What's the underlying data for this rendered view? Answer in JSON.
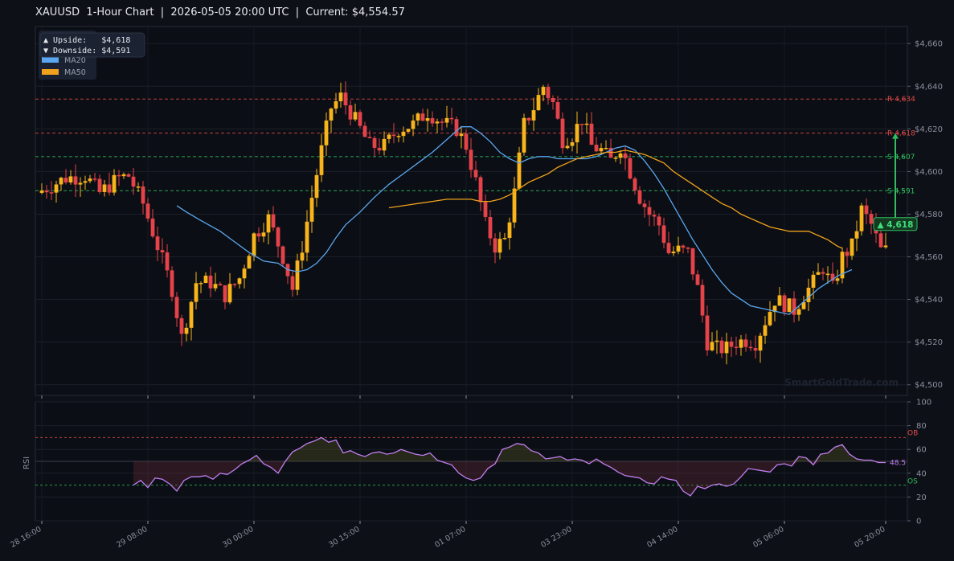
{
  "title": "XAUUSD  1-Hour Chart  |  2026-05-05 20:00 UTC  |  Current: $4,554.57",
  "info_box": {
    "upside": "▲ Upside:   $4,618",
    "downside": "▼ Downside: $4,591"
  },
  "legend": [
    {
      "label": "MA20",
      "color": "#5aa6f0"
    },
    {
      "label": "MA50",
      "color": "#f0a21c"
    }
  ],
  "watermark": "SmartGoldTrade.com",
  "rsi_label": "RSI",
  "annotation": {
    "label": "▲ 4,618",
    "from": 4578,
    "to": 4618,
    "candle": 177
  },
  "chart_data": {
    "type": "candlestick",
    "ylim": [
      4495,
      4668
    ],
    "yticks": [
      4500,
      4520,
      4540,
      4560,
      4580,
      4600,
      4620,
      4640,
      4660
    ],
    "ytick_labels": [
      "$4,500",
      "$4,520",
      "$4,540",
      "$4,560",
      "$4,580",
      "$4,600",
      "$4,620",
      "$4,640",
      "$4,660"
    ],
    "x_ticks": [
      {
        "label": "28 16:00",
        "index": 0
      },
      {
        "label": "29 08:00",
        "index": 22
      },
      {
        "label": "30 00:00",
        "index": 44
      },
      {
        "label": "30 15:00",
        "index": 66
      },
      {
        "label": "01 07:00",
        "index": 88
      },
      {
        "label": "03 23:00",
        "index": 110
      },
      {
        "label": "04 14:00",
        "index": 132
      },
      {
        "label": "05 06:00",
        "index": 154
      },
      {
        "label": "05 20:00",
        "index": 175
      }
    ],
    "n_candles": 176,
    "levels": [
      {
        "label": "R 4,634",
        "value": 4634,
        "color": "#e04a4a"
      },
      {
        "label": "R 4,618",
        "value": 4618,
        "color": "#e04a4a"
      },
      {
        "label": "S 4,607",
        "value": 4607,
        "color": "#2fbf5f"
      },
      {
        "label": "S 4,591",
        "value": 4591,
        "color": "#2fbf5f"
      }
    ],
    "ma20": [
      [
        28,
        4584
      ],
      [
        30,
        4581
      ],
      [
        33,
        4577
      ],
      [
        37,
        4572
      ],
      [
        40,
        4567
      ],
      [
        43,
        4562
      ],
      [
        46,
        4558
      ],
      [
        49,
        4557
      ],
      [
        51,
        4554
      ],
      [
        53,
        4553
      ],
      [
        55,
        4554
      ],
      [
        57,
        4557
      ],
      [
        59,
        4562
      ],
      [
        61,
        4569
      ],
      [
        63,
        4575
      ],
      [
        66,
        4581
      ],
      [
        69,
        4588
      ],
      [
        72,
        4594
      ],
      [
        75,
        4599
      ],
      [
        78,
        4604
      ],
      [
        81,
        4609
      ],
      [
        84,
        4615
      ],
      [
        87,
        4621
      ],
      [
        89,
        4621
      ],
      [
        91,
        4618
      ],
      [
        93,
        4614
      ],
      [
        95,
        4609
      ],
      [
        97,
        4606
      ],
      [
        99,
        4604
      ],
      [
        101,
        4606
      ],
      [
        103,
        4607
      ],
      [
        105,
        4607
      ],
      [
        107,
        4606
      ],
      [
        109,
        4606
      ],
      [
        111,
        4606
      ],
      [
        113,
        4606
      ],
      [
        115,
        4607
      ],
      [
        117,
        4609
      ],
      [
        119,
        4611
      ],
      [
        121,
        4612
      ],
      [
        123,
        4610
      ],
      [
        125,
        4605
      ],
      [
        127,
        4599
      ],
      [
        129,
        4592
      ],
      [
        131,
        4584
      ],
      [
        133,
        4576
      ],
      [
        135,
        4568
      ],
      [
        137,
        4561
      ],
      [
        139,
        4554
      ],
      [
        141,
        4548
      ],
      [
        143,
        4543
      ],
      [
        145,
        4540
      ],
      [
        147,
        4537
      ],
      [
        149,
        4536
      ],
      [
        151,
        4535
      ],
      [
        153,
        4534
      ],
      [
        155,
        4533
      ],
      [
        157,
        4537
      ],
      [
        159,
        4541
      ],
      [
        161,
        4545
      ],
      [
        163,
        4548
      ],
      [
        165,
        4551
      ],
      [
        167,
        4553
      ],
      [
        168,
        4554
      ]
    ],
    "ma50": [
      [
        72,
        4583
      ],
      [
        75,
        4584
      ],
      [
        78,
        4585
      ],
      [
        81,
        4586
      ],
      [
        84,
        4587
      ],
      [
        87,
        4587
      ],
      [
        89,
        4587
      ],
      [
        91,
        4586
      ],
      [
        93,
        4586
      ],
      [
        95,
        4587
      ],
      [
        97,
        4589
      ],
      [
        99,
        4592
      ],
      [
        101,
        4595
      ],
      [
        103,
        4597
      ],
      [
        105,
        4599
      ],
      [
        107,
        4602
      ],
      [
        109,
        4604
      ],
      [
        111,
        4606
      ],
      [
        113,
        4607
      ],
      [
        115,
        4608
      ],
      [
        117,
        4609
      ],
      [
        119,
        4609
      ],
      [
        121,
        4610
      ],
      [
        123,
        4609
      ],
      [
        125,
        4608
      ],
      [
        127,
        4606
      ],
      [
        129,
        4604
      ],
      [
        131,
        4600
      ],
      [
        133,
        4597
      ],
      [
        135,
        4594
      ],
      [
        137,
        4591
      ],
      [
        139,
        4588
      ],
      [
        141,
        4585
      ],
      [
        143,
        4583
      ],
      [
        145,
        4580
      ],
      [
        147,
        4578
      ],
      [
        149,
        4576
      ],
      [
        151,
        4574
      ],
      [
        153,
        4573
      ],
      [
        155,
        4572
      ],
      [
        157,
        4572
      ],
      [
        159,
        4572
      ],
      [
        161,
        4570
      ],
      [
        163,
        4568
      ],
      [
        165,
        4565
      ],
      [
        166,
        4564
      ]
    ],
    "rsi": {
      "ylim": [
        0,
        100
      ],
      "yticks": [
        0,
        20,
        40,
        60,
        80,
        100
      ],
      "ob": 70,
      "os": 30,
      "mid": 50,
      "ob_label": "OB",
      "os_label": "OS",
      "current_label": "48.5",
      "start_index": 19,
      "values": [
        30,
        34,
        28,
        36,
        35,
        31,
        25,
        34,
        37,
        37,
        38,
        35,
        40,
        39,
        43,
        48,
        51,
        55,
        48,
        45,
        40,
        50,
        58,
        61,
        65,
        67,
        70,
        66,
        68,
        57,
        59,
        56,
        54,
        57,
        58,
        56,
        57,
        60,
        58,
        56,
        55,
        57,
        51,
        49,
        47,
        40,
        36,
        34,
        36,
        44,
        48,
        60,
        62,
        65,
        64,
        59,
        57,
        52,
        53,
        54,
        51,
        52,
        51,
        48,
        52,
        48,
        45,
        41,
        38,
        37,
        36,
        32,
        31,
        37,
        35,
        34,
        25,
        21,
        29,
        27,
        30,
        31,
        29,
        31,
        37,
        44,
        43,
        42,
        41,
        47,
        48,
        46,
        54,
        53,
        47,
        56,
        57,
        62,
        64,
        56,
        52,
        51,
        51,
        49,
        49
      ]
    }
  }
}
